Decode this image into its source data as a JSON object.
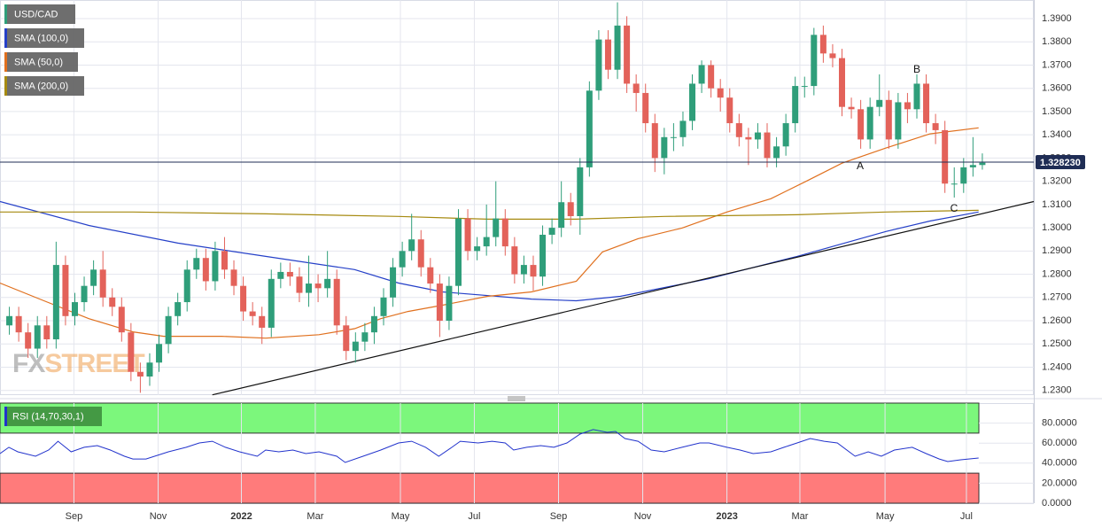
{
  "chart_data": {
    "type": "candlestick",
    "symbol": "USD/CAD",
    "watermark": [
      "FX",
      "STREET"
    ],
    "xlim": [
      -1,
      109.5
    ],
    "xticks": [
      {
        "value": 6.9,
        "label": "Sep"
      },
      {
        "value": 15.9,
        "label": "Nov"
      },
      {
        "value": 24.8,
        "label": "2022"
      },
      {
        "value": 32.7,
        "label": "Mar"
      },
      {
        "value": 41.8,
        "label": "May"
      },
      {
        "value": 49.7,
        "label": "Jul"
      },
      {
        "value": 58.7,
        "label": "Sep"
      },
      {
        "value": 67.7,
        "label": "Nov"
      },
      {
        "value": 76.7,
        "label": "2023"
      },
      {
        "value": 84.5,
        "label": "Mar"
      },
      {
        "value": 93.6,
        "label": "May"
      },
      {
        "value": 102.3,
        "label": "Jul"
      }
    ],
    "ylim": [
      1.228,
      1.398
    ],
    "yticks": [
      {
        "value": 1.23,
        "label": "1.2300"
      },
      {
        "value": 1.24,
        "label": "1.2400"
      },
      {
        "value": 1.25,
        "label": "1.2500"
      },
      {
        "value": 1.26,
        "label": "1.2600"
      },
      {
        "value": 1.27,
        "label": "1.2700"
      },
      {
        "value": 1.28,
        "label": "1.2800"
      },
      {
        "value": 1.29,
        "label": "1.2900"
      },
      {
        "value": 1.3,
        "label": "1.3000"
      },
      {
        "value": 1.31,
        "label": "1.3100"
      },
      {
        "value": 1.32,
        "label": "1.3200"
      },
      {
        "value": 1.33,
        "label": "1.3300"
      },
      {
        "value": 1.34,
        "label": "1.3400"
      },
      {
        "value": 1.35,
        "label": "1.3500"
      },
      {
        "value": 1.36,
        "label": "1.3600"
      },
      {
        "value": 1.37,
        "label": "1.3700"
      },
      {
        "value": 1.38,
        "label": "1.3800"
      },
      {
        "value": 1.39,
        "label": "1.3900"
      }
    ],
    "grid": true,
    "up_color": "#2f9e7a",
    "down_color": "#e3625a",
    "open": [
      1.258,
      1.262,
      1.255,
      1.248,
      1.258,
      1.252,
      1.284,
      1.262,
      1.268,
      1.275,
      1.282,
      1.27,
      1.266,
      1.255,
      1.238,
      1.236,
      1.242,
      1.25,
      1.262,
      1.268,
      1.282,
      1.287,
      1.277,
      1.29,
      1.282,
      1.275,
      1.264,
      1.262,
      1.257,
      1.278,
      1.281,
      1.279,
      1.272,
      1.276,
      1.274,
      1.278,
      1.258,
      1.247,
      1.251,
      1.255,
      1.262,
      1.27,
      1.283,
      1.29,
      1.295,
      1.283,
      1.276,
      1.26,
      1.275,
      1.304,
      1.29,
      1.292,
      1.296,
      1.304,
      1.292,
      1.28,
      1.284,
      1.279,
      1.297,
      1.3,
      1.311,
      1.305,
      1.326,
      1.359,
      1.381,
      1.368,
      1.387,
      1.362,
      1.358,
      1.345,
      1.33,
      1.339,
      1.339,
      1.346,
      1.362,
      1.37,
      1.36,
      1.356,
      1.345,
      1.339,
      1.338,
      1.341,
      1.33,
      1.335,
      1.345,
      1.361,
      1.361,
      1.383,
      1.375,
      1.373,
      1.352,
      1.351,
      1.338,
      1.352,
      1.355,
      1.338,
      1.354,
      1.351,
      1.362,
      1.345,
      1.342,
      1.319,
      1.319,
      1.326,
      1.327
    ],
    "high": [
      1.266,
      1.266,
      1.259,
      1.262,
      1.262,
      1.294,
      1.288,
      1.272,
      1.279,
      1.286,
      1.29,
      1.274,
      1.27,
      1.259,
      1.242,
      1.246,
      1.254,
      1.266,
      1.272,
      1.286,
      1.291,
      1.291,
      1.294,
      1.296,
      1.286,
      1.279,
      1.268,
      1.266,
      1.282,
      1.285,
      1.285,
      1.283,
      1.288,
      1.28,
      1.29,
      1.282,
      1.262,
      1.255,
      1.259,
      1.266,
      1.274,
      1.287,
      1.294,
      1.306,
      1.299,
      1.287,
      1.28,
      1.279,
      1.308,
      1.308,
      1.296,
      1.31,
      1.32,
      1.308,
      1.296,
      1.288,
      1.288,
      1.301,
      1.304,
      1.32,
      1.315,
      1.33,
      1.363,
      1.385,
      1.385,
      1.397,
      1.391,
      1.366,
      1.362,
      1.349,
      1.343,
      1.345,
      1.35,
      1.366,
      1.372,
      1.372,
      1.364,
      1.36,
      1.349,
      1.343,
      1.345,
      1.345,
      1.339,
      1.349,
      1.365,
      1.365,
      1.386,
      1.387,
      1.379,
      1.377,
      1.356,
      1.355,
      1.356,
      1.366,
      1.359,
      1.358,
      1.358,
      1.366,
      1.366,
      1.349,
      1.346,
      1.326,
      1.33,
      1.339,
      1.332
    ],
    "low": [
      1.254,
      1.251,
      1.244,
      1.244,
      1.248,
      1.248,
      1.258,
      1.258,
      1.264,
      1.271,
      1.266,
      1.262,
      1.251,
      1.234,
      1.229,
      1.232,
      1.238,
      1.246,
      1.258,
      1.264,
      1.278,
      1.273,
      1.273,
      1.278,
      1.271,
      1.26,
      1.258,
      1.25,
      1.253,
      1.274,
      1.275,
      1.268,
      1.266,
      1.268,
      1.27,
      1.254,
      1.243,
      1.242,
      1.247,
      1.25,
      1.258,
      1.266,
      1.279,
      1.286,
      1.279,
      1.272,
      1.253,
      1.256,
      1.271,
      1.286,
      1.286,
      1.288,
      1.292,
      1.288,
      1.276,
      1.276,
      1.273,
      1.275,
      1.293,
      1.296,
      1.301,
      1.297,
      1.322,
      1.355,
      1.364,
      1.364,
      1.358,
      1.35,
      1.341,
      1.324,
      1.323,
      1.333,
      1.335,
      1.342,
      1.358,
      1.356,
      1.35,
      1.341,
      1.335,
      1.327,
      1.334,
      1.326,
      1.326,
      1.331,
      1.341,
      1.356,
      1.357,
      1.371,
      1.369,
      1.348,
      1.347,
      1.334,
      1.334,
      1.348,
      1.334,
      1.334,
      1.345,
      1.347,
      1.341,
      1.336,
      1.315,
      1.313,
      1.315,
      1.322,
      1.325
    ],
    "close": [
      1.262,
      1.255,
      1.248,
      1.258,
      1.252,
      1.284,
      1.262,
      1.268,
      1.275,
      1.282,
      1.27,
      1.266,
      1.255,
      1.238,
      1.236,
      1.242,
      1.25,
      1.262,
      1.268,
      1.282,
      1.287,
      1.277,
      1.29,
      1.282,
      1.275,
      1.264,
      1.262,
      1.257,
      1.278,
      1.281,
      1.279,
      1.272,
      1.276,
      1.274,
      1.278,
      1.258,
      1.247,
      1.251,
      1.255,
      1.262,
      1.27,
      1.283,
      1.29,
      1.295,
      1.283,
      1.276,
      1.26,
      1.275,
      1.304,
      1.29,
      1.292,
      1.296,
      1.304,
      1.292,
      1.28,
      1.284,
      1.279,
      1.297,
      1.3,
      1.311,
      1.305,
      1.326,
      1.359,
      1.381,
      1.368,
      1.387,
      1.362,
      1.358,
      1.345,
      1.33,
      1.339,
      1.339,
      1.346,
      1.362,
      1.37,
      1.36,
      1.356,
      1.345,
      1.339,
      1.338,
      1.341,
      1.33,
      1.335,
      1.345,
      1.361,
      1.361,
      1.383,
      1.375,
      1.373,
      1.352,
      1.351,
      1.338,
      1.352,
      1.355,
      1.338,
      1.354,
      1.351,
      1.362,
      1.345,
      1.342,
      1.319,
      1.319,
      1.326,
      1.327,
      1.328
    ],
    "last_price": {
      "value": 1.32823,
      "label": "1.328230"
    },
    "overlays": [
      {
        "name": "SMA (100,0)",
        "color": "#2540c8",
        "x": [
          -1,
          8.5,
          18,
          27.4,
          36.9,
          41.6,
          46.3,
          55.8,
          60.6,
          65.3,
          74.8,
          84.2,
          93.7,
          98.4,
          103.6
        ],
        "values": [
          1.3113,
          1.301,
          1.2934,
          1.2877,
          1.282,
          1.2762,
          1.2724,
          1.2693,
          1.2686,
          1.2705,
          1.2781,
          1.2877,
          1.2984,
          1.3029,
          1.3068
        ]
      },
      {
        "name": "SMA (50,0)",
        "color": "#e0701e",
        "x": [
          -1,
          3.7,
          8.5,
          13.2,
          16.5,
          22.7,
          27.4,
          33.1,
          36.9,
          39.7,
          42.6,
          46.3,
          51.1,
          55.8,
          60.6,
          63.4,
          67.2,
          71.9,
          76.7,
          81.4,
          85.2,
          89,
          93.7,
          98.4,
          103.6
        ],
        "values": [
          1.2762,
          1.2686,
          1.2609,
          1.2552,
          1.2533,
          1.2533,
          1.2525,
          1.254,
          1.2566,
          1.2609,
          1.264,
          1.2667,
          1.2705,
          1.2724,
          1.277,
          1.2896,
          1.2953,
          1.2999,
          1.3068,
          1.3125,
          1.3201,
          1.3278,
          1.3343,
          1.3404,
          1.343
        ]
      },
      {
        "name": "SMA (200,0)",
        "color": "#a68a10",
        "x": [
          -1,
          13.2,
          27.4,
          41.6,
          51.1,
          60.6,
          70,
          84.2,
          93.7,
          103.6
        ],
        "values": [
          1.3068,
          1.3068,
          1.306,
          1.3049,
          1.3037,
          1.3037,
          1.3049,
          1.3056,
          1.3068,
          1.3075
        ]
      }
    ],
    "trendline": {
      "color": "#111111",
      "x": [
        21.7,
        109.5
      ],
      "values": [
        1.2281,
        1.3113
      ]
    },
    "annotations": [
      "A",
      "B",
      "C"
    ],
    "rsi": {
      "name": "RSI (14,70,30,1)",
      "color": "#2233cc",
      "ylim": [
        0,
        100
      ],
      "yticks": [
        {
          "value": 0,
          "label": "0.0000"
        },
        {
          "value": 20,
          "label": "20.0000"
        },
        {
          "value": 40,
          "label": "40.0000"
        },
        {
          "value": 60,
          "label": "60.0000"
        },
        {
          "value": 80,
          "label": "80.0000"
        }
      ],
      "overbought": 70,
      "oversold": 30,
      "x": [
        -1,
        -0.05,
        0.9,
        2.8,
        4.2,
        5.2,
        6.6,
        8,
        9.4,
        10.8,
        12.3,
        13.2,
        14.6,
        17,
        18.9,
        20.3,
        21.7,
        23.1,
        24.6,
        26.5,
        27.4,
        28.8,
        30.3,
        31.7,
        33.1,
        35,
        35.9,
        37.8,
        39.7,
        41.6,
        43,
        44.5,
        45.9,
        47.3,
        48.2,
        50.1,
        51.6,
        53,
        53.9,
        55.3,
        56.8,
        58.2,
        59.6,
        61,
        62.4,
        63.9,
        64.8,
        65.8,
        67.2,
        68.6,
        70,
        71.9,
        73.8,
        74.8,
        76.7,
        78.1,
        79.5,
        81.4,
        82.8,
        84.2,
        85.6,
        87.1,
        88.5,
        90.4,
        91.8,
        93.2,
        94.6,
        96.5,
        98,
        99.4,
        100.3,
        101.7,
        103.6
      ],
      "values": [
        49.6,
        55.8,
        51.3,
        46.9,
        53.1,
        61.9,
        51.3,
        55.8,
        57.5,
        53.1,
        46.9,
        44.2,
        44.2,
        51.3,
        55.8,
        60.2,
        61.9,
        55.8,
        51.3,
        46.9,
        53.1,
        51.3,
        53.1,
        49.6,
        51.3,
        46.9,
        40.7,
        46.9,
        53.1,
        60.2,
        61.9,
        55.8,
        46.9,
        55.8,
        61.9,
        60.2,
        61.9,
        60.2,
        53.1,
        55.8,
        57.5,
        55.8,
        60.2,
        69.0,
        73.5,
        70.8,
        71.7,
        64.6,
        61.9,
        53.1,
        51.3,
        55.8,
        60.2,
        60.2,
        55.8,
        53.1,
        49.6,
        51.3,
        55.8,
        60.2,
        64.6,
        61.9,
        60.2,
        46.9,
        51.3,
        46.9,
        53.1,
        55.8,
        49.6,
        44.2,
        41.6,
        43.4,
        45.1
      ]
    }
  }
}
